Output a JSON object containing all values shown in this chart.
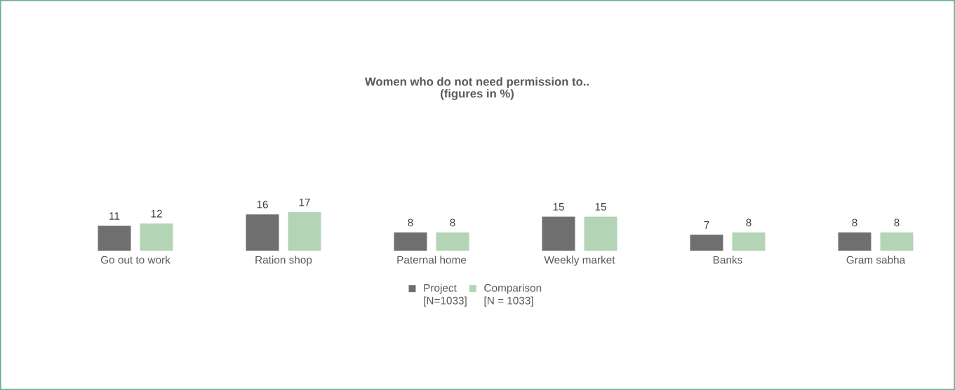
{
  "chart_data": {
    "type": "bar",
    "title": "Women who do not need permission to..",
    "subtitle": "(figures in %)",
    "categories": [
      "Go out to work",
      "Ration shop",
      "Paternal home",
      "Weekly market",
      "Banks",
      "Gram sabha"
    ],
    "series": [
      {
        "name": "Project [N=1033]",
        "color": "#6f6f6f",
        "values": [
          11,
          16,
          8,
          15,
          7,
          8
        ]
      },
      {
        "name": "Comparison [N = 1033]",
        "color": "#b3d4b5",
        "values": [
          12,
          17,
          8,
          15,
          8,
          8
        ]
      }
    ],
    "data_labels": true,
    "legend": "bottom"
  }
}
